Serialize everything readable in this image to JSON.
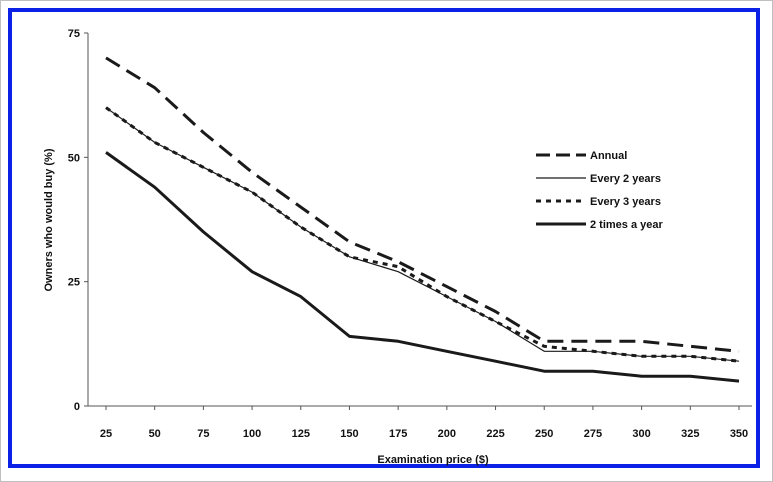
{
  "colors": {
    "frame": "#0b22e6",
    "line": "#1a1a1a",
    "axis": "#555555"
  },
  "chart_data": {
    "type": "line",
    "title": "",
    "xlabel": "Examination price ($)",
    "ylabel": "Owners who would buy (%)",
    "ylim": [
      0,
      75
    ],
    "yticks": [
      "0",
      "25",
      "50",
      "75"
    ],
    "categories": [
      "25",
      "50",
      "75",
      "100",
      "125",
      "150",
      "175",
      "200",
      "225",
      "250",
      "275",
      "300",
      "325",
      "350"
    ],
    "legend_position": "right",
    "grid": false,
    "series": [
      {
        "name": "Annual",
        "style": "long-dash",
        "values": [
          70,
          64,
          55,
          47,
          40,
          33,
          29,
          24,
          19,
          13,
          13,
          13,
          12,
          11
        ]
      },
      {
        "name": "Every 2 years",
        "style": "thin-solid",
        "values": [
          60,
          53,
          48,
          43,
          36,
          30,
          27,
          22,
          17,
          11,
          11,
          10,
          10,
          9
        ]
      },
      {
        "name": "Every 3 years",
        "style": "short-dash",
        "values": [
          60,
          53,
          48,
          43,
          36,
          30,
          28,
          22,
          17,
          12,
          11,
          10,
          10,
          9
        ]
      },
      {
        "name": "2 times a year",
        "style": "thick-solid",
        "values": [
          51,
          44,
          35,
          27,
          22,
          14,
          13,
          11,
          9,
          7,
          7,
          6,
          6,
          5
        ]
      }
    ]
  }
}
